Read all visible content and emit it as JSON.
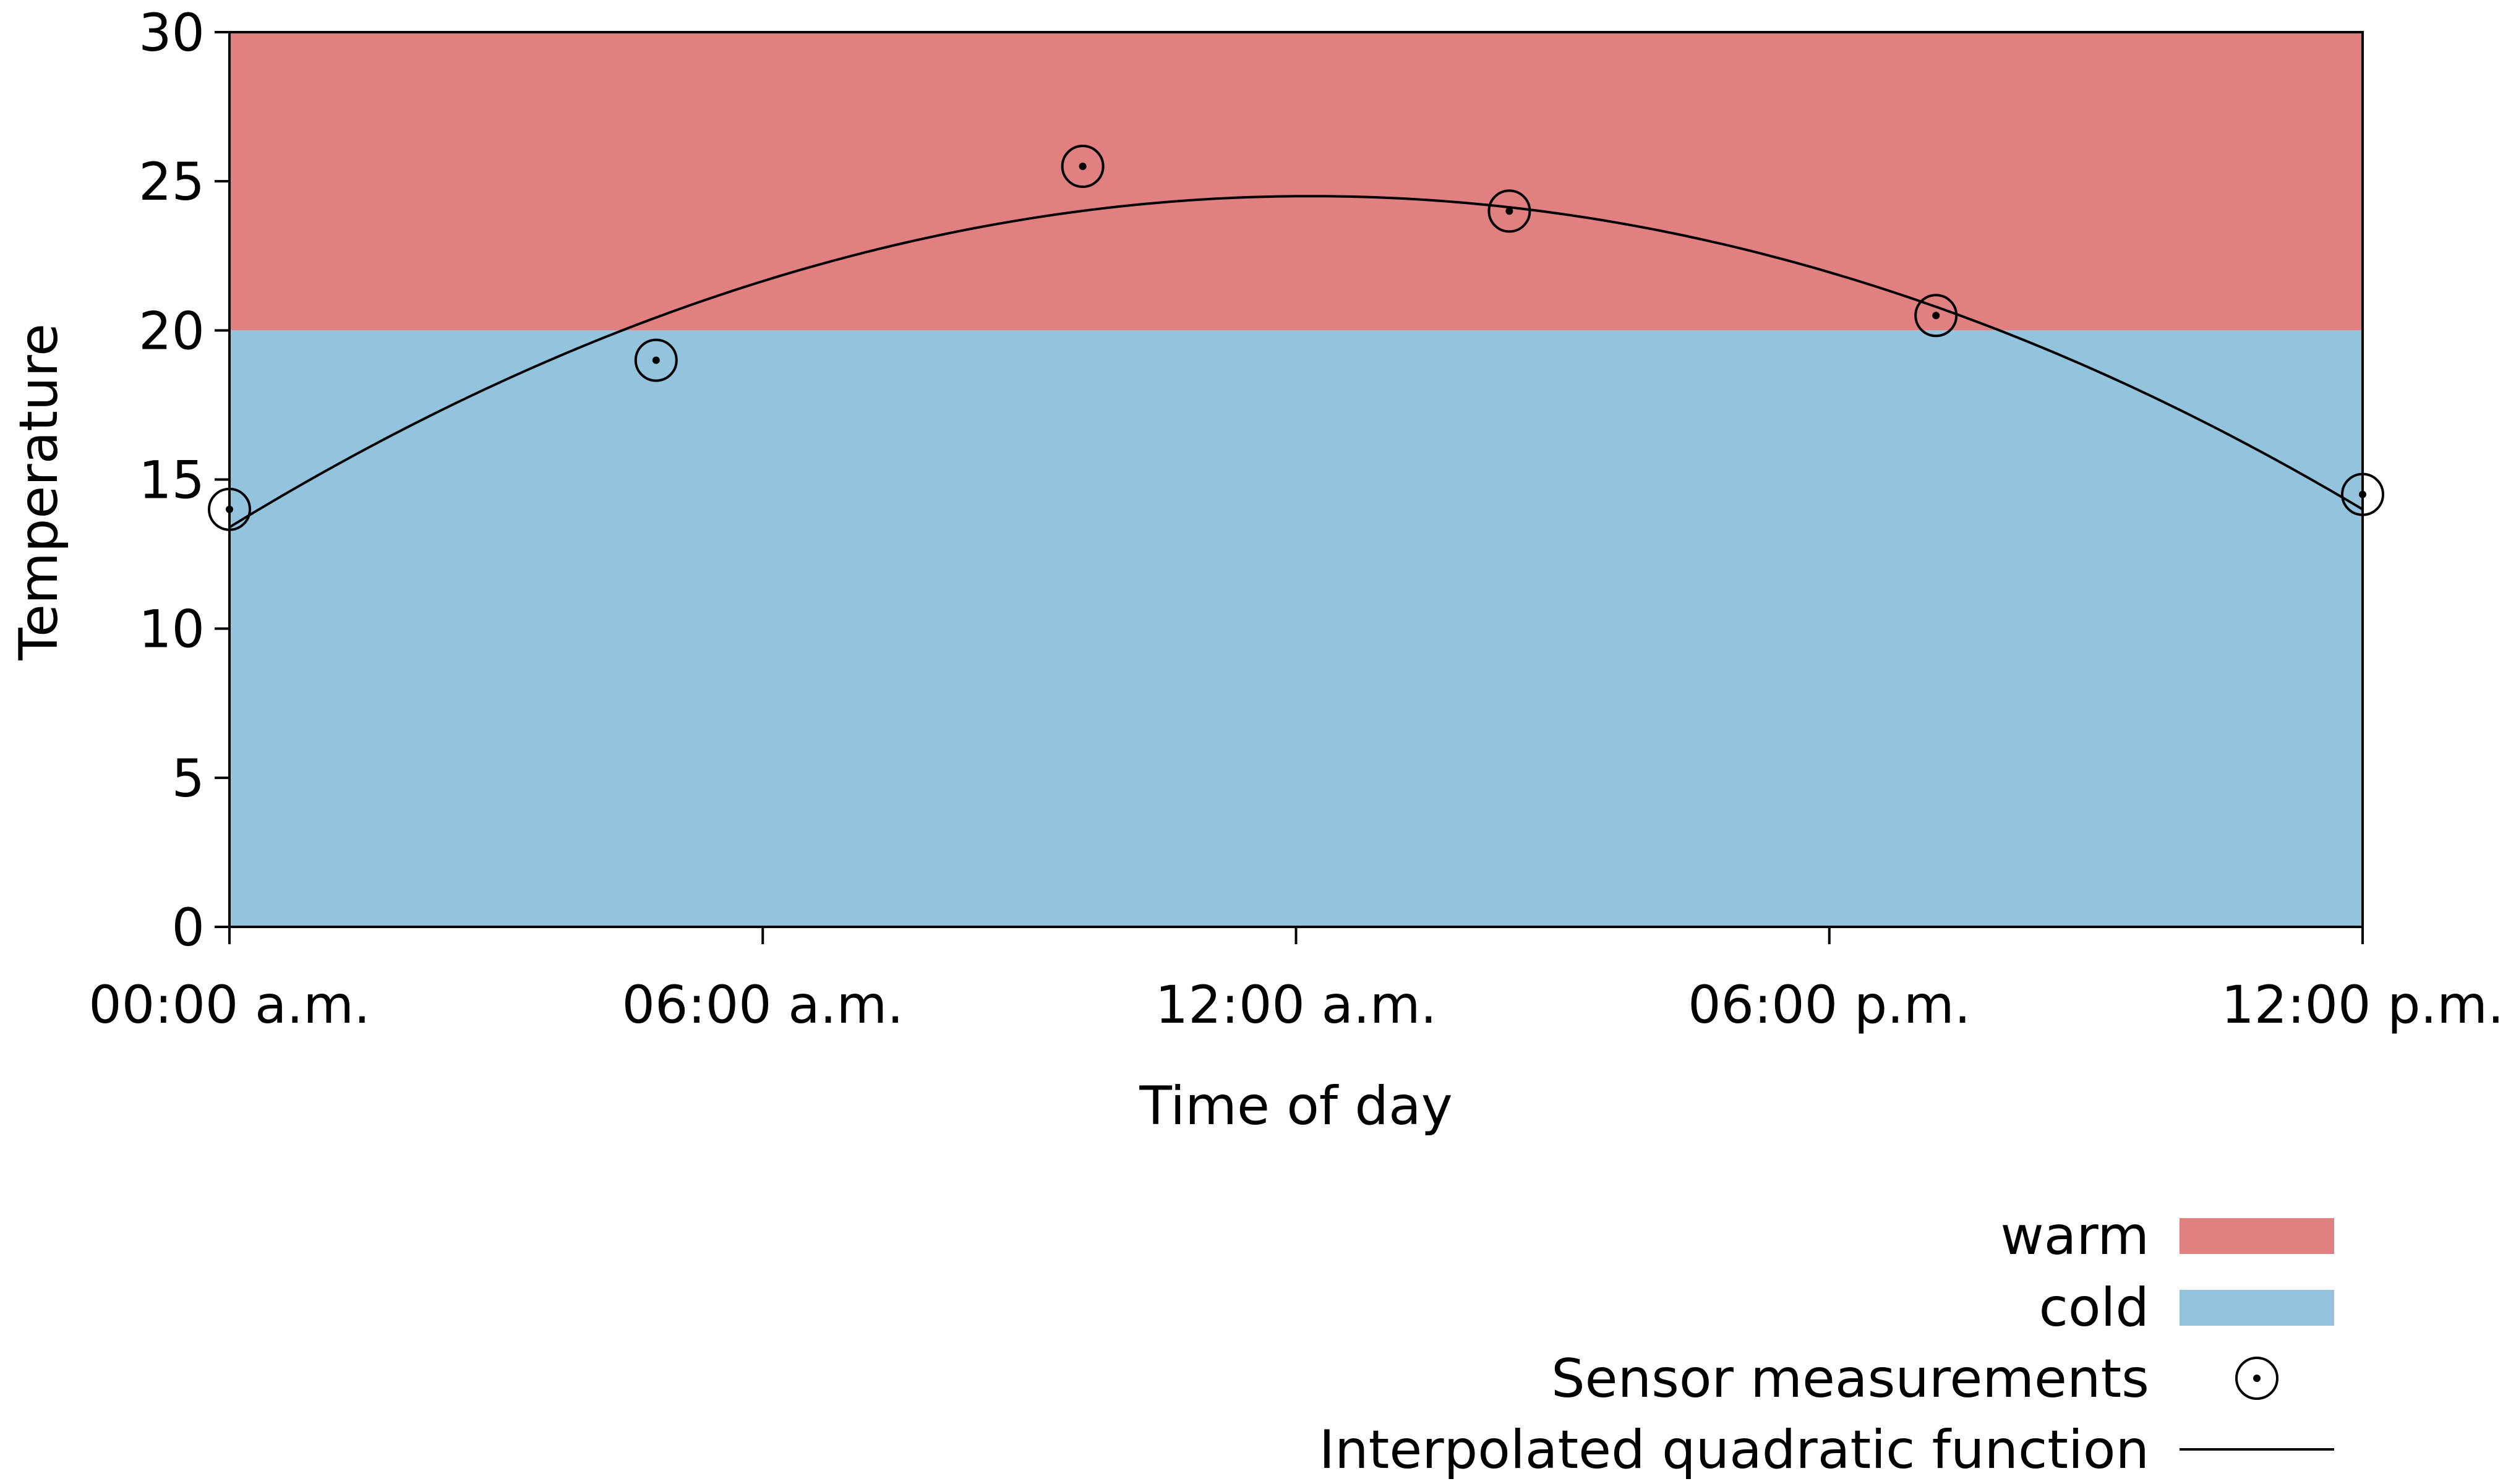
{
  "chart_data": {
    "type": "scatter",
    "xlabel": "Time of day",
    "ylabel": "Temperature",
    "xlim": [
      0,
      24
    ],
    "ylim": [
      0,
      30
    ],
    "x_ticks": [
      {
        "value": 0,
        "label": "00:00 a.m."
      },
      {
        "value": 6,
        "label": "06:00 a.m."
      },
      {
        "value": 12,
        "label": "12:00 a.m."
      },
      {
        "value": 18,
        "label": "06:00 p.m."
      },
      {
        "value": 24,
        "label": "12:00 p.m."
      }
    ],
    "y_ticks": [
      {
        "value": 0,
        "label": "0"
      },
      {
        "value": 5,
        "label": "5"
      },
      {
        "value": 10,
        "label": "10"
      },
      {
        "value": 15,
        "label": "15"
      },
      {
        "value": 20,
        "label": "20"
      },
      {
        "value": 25,
        "label": "25"
      },
      {
        "value": 30,
        "label": "30"
      }
    ],
    "bands": [
      {
        "name": "warm",
        "from": 20,
        "to": 30,
        "color": "#e08080"
      },
      {
        "name": "cold",
        "from": 0,
        "to": 20,
        "color": "#93c3dd"
      }
    ],
    "series": [
      {
        "name": "Sensor measurements",
        "kind": "scatter",
        "marker": "circled-dot",
        "points": [
          {
            "x": 0,
            "y": 14
          },
          {
            "x": 4.8,
            "y": 19
          },
          {
            "x": 9.6,
            "y": 25.5
          },
          {
            "x": 14.4,
            "y": 24
          },
          {
            "x": 19.2,
            "y": 20.5
          },
          {
            "x": 24,
            "y": 14.5
          }
        ]
      },
      {
        "name": "Interpolated quadratic function",
        "kind": "line",
        "color": "#000000",
        "function": {
          "type": "quadratic",
          "a": -0.075,
          "b": 1.825,
          "c": 13.4
        }
      }
    ],
    "legend": {
      "position": "bottom-right",
      "items": [
        {
          "label": "warm",
          "color": "#e08080",
          "symbol": "swatch"
        },
        {
          "label": "cold",
          "color": "#93c3dd",
          "symbol": "swatch"
        },
        {
          "label": "Sensor measurements",
          "symbol": "circled-dot"
        },
        {
          "label": "Interpolated quadratic function",
          "symbol": "line"
        }
      ]
    },
    "grid": false
  }
}
